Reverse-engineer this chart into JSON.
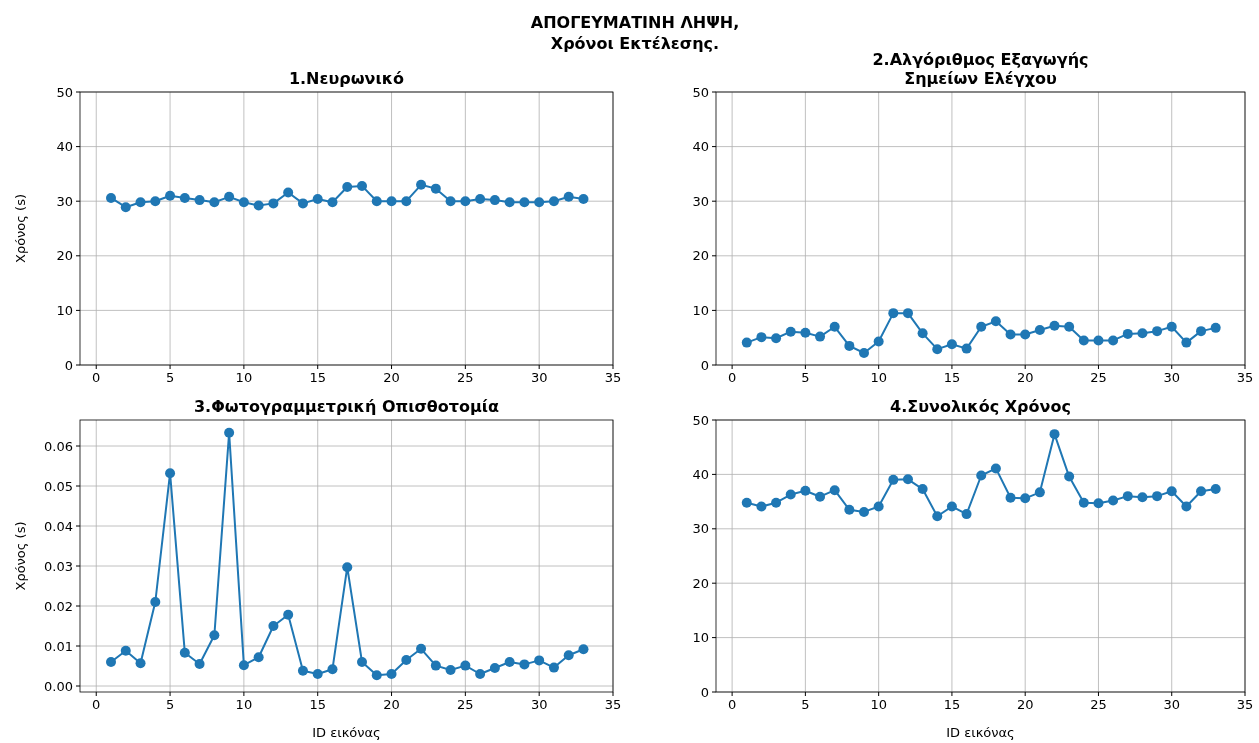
{
  "chart_data": [
    {
      "type": "other",
      "title": "ΑΠΟΓΕΥΜΑΤΙΝΗ ΛΗΨΗ,\nΧρόνοι Εκτέλεσης."
    },
    {
      "type": "line",
      "title": "1.Νευρωνικό",
      "ylabel": "Χρόνος (s)",
      "x": [
        1,
        2,
        3,
        4,
        5,
        6,
        7,
        8,
        9,
        10,
        11,
        12,
        13,
        14,
        15,
        16,
        17,
        18,
        19,
        20,
        21,
        22,
        23,
        24,
        25,
        26,
        27,
        28,
        29,
        30,
        31,
        32,
        33
      ],
      "series": [
        {
          "color": "#1f77b4",
          "values": [
            30.6,
            28.9,
            29.8,
            30,
            31,
            30.6,
            30.2,
            29.8,
            30.8,
            29.8,
            29.2,
            29.6,
            31.6,
            29.6,
            30.4,
            29.8,
            32.6,
            32.8,
            30,
            30,
            30,
            33,
            32.3,
            30,
            30,
            30.4,
            30.2,
            29.8,
            29.8,
            29.8,
            30,
            30.8,
            30.4
          ]
        }
      ],
      "xlim": [
        -1.1,
        35
      ],
      "xticks": [
        0,
        5,
        10,
        15,
        20,
        25,
        30,
        35
      ],
      "ylim": [
        0,
        50
      ],
      "yticks": [
        0,
        10,
        20,
        30,
        40,
        50
      ],
      "grid": true,
      "marker": "circle",
      "line_style": "solid"
    },
    {
      "type": "line",
      "title": "2.Αλγόριθμος Εξαγωγής\nΣημείων Ελέγχου",
      "x": [
        1,
        2,
        3,
        4,
        5,
        6,
        7,
        8,
        9,
        10,
        11,
        12,
        13,
        14,
        15,
        16,
        17,
        18,
        19,
        20,
        21,
        22,
        23,
        24,
        25,
        26,
        27,
        28,
        29,
        30,
        31,
        32,
        33
      ],
      "series": [
        {
          "color": "#1f77b4",
          "values": [
            4.1,
            5.1,
            4.9,
            6.1,
            5.9,
            5.2,
            7,
            3.5,
            2.2,
            4.3,
            9.5,
            9.5,
            5.8,
            2.9,
            3.8,
            3,
            7,
            8,
            5.6,
            5.6,
            6.4,
            7.2,
            7,
            4.5,
            4.5,
            4.5,
            5.7,
            5.8,
            6.2,
            7,
            4.1,
            6.2,
            6.8
          ]
        }
      ],
      "xlim": [
        -1.1,
        35
      ],
      "xticks": [
        0,
        5,
        10,
        15,
        20,
        25,
        30,
        35
      ],
      "ylim": [
        0,
        50
      ],
      "yticks": [
        0,
        10,
        20,
        30,
        40,
        50
      ],
      "grid": true,
      "marker": "circle",
      "line_style": "solid"
    },
    {
      "type": "line",
      "title": "3.Φωτογραμμετρική Οπισθοτομία",
      "xlabel": "ID εικόνας",
      "ylabel": "Χρόνος (s)",
      "x": [
        1,
        2,
        3,
        4,
        5,
        6,
        7,
        8,
        9,
        10,
        11,
        12,
        13,
        14,
        15,
        16,
        17,
        18,
        19,
        20,
        21,
        22,
        23,
        24,
        25,
        26,
        27,
        28,
        29,
        30,
        31,
        32,
        33
      ],
      "series": [
        {
          "color": "#1f77b4",
          "values": [
            0.006,
            0.0088,
            0.0057,
            0.021,
            0.0532,
            0.0083,
            0.0055,
            0.0127,
            0.0633,
            0.0052,
            0.0072,
            0.015,
            0.0178,
            0.0038,
            0.003,
            0.0042,
            0.0297,
            0.006,
            0.0027,
            0.003,
            0.0065,
            0.0093,
            0.0051,
            0.004,
            0.0051,
            0.003,
            0.0045,
            0.006,
            0.0054,
            0.0064,
            0.0046,
            0.0077,
            0.0092
          ]
        }
      ],
      "xlim": [
        -1.1,
        35
      ],
      "xticks": [
        0,
        5,
        10,
        15,
        20,
        25,
        30,
        35
      ],
      "ylim": [
        -0.0015,
        0.0665
      ],
      "yticks": [
        {
          "value": 0,
          "label": "0.00"
        },
        {
          "value": 0.01,
          "label": "0.01"
        },
        {
          "value": 0.02,
          "label": "0.02"
        },
        {
          "value": 0.03,
          "label": "0.03"
        },
        {
          "value": 0.04,
          "label": "0.04"
        },
        {
          "value": 0.05,
          "label": "0.05"
        },
        {
          "value": 0.06,
          "label": "0.06"
        }
      ],
      "grid": true,
      "marker": "circle",
      "line_style": "solid"
    },
    {
      "type": "line",
      "title": "4.Συνολικός Χρόνος",
      "xlabel": "ID εικόνας",
      "x": [
        1,
        2,
        3,
        4,
        5,
        6,
        7,
        8,
        9,
        10,
        11,
        12,
        13,
        14,
        15,
        16,
        17,
        18,
        19,
        20,
        21,
        22,
        23,
        24,
        25,
        26,
        27,
        28,
        29,
        30,
        31,
        32,
        33
      ],
      "series": [
        {
          "color": "#1f77b4",
          "values": [
            34.8,
            34.1,
            34.8,
            36.3,
            37,
            35.9,
            37.1,
            33.5,
            33.1,
            34.1,
            39,
            39.1,
            37.3,
            32.3,
            34.1,
            32.7,
            39.8,
            41.1,
            35.7,
            35.6,
            36.7,
            47.4,
            39.6,
            34.8,
            34.7,
            35.2,
            36,
            35.8,
            36,
            36.9,
            34.1,
            36.9,
            37.3
          ]
        }
      ],
      "xlim": [
        -1.1,
        35
      ],
      "xticks": [
        0,
        5,
        10,
        15,
        20,
        25,
        30,
        35
      ],
      "ylim": [
        0,
        50
      ],
      "yticks": [
        0,
        10,
        20,
        30,
        40,
        50
      ],
      "grid": true,
      "marker": "circle",
      "line_style": "solid"
    }
  ]
}
